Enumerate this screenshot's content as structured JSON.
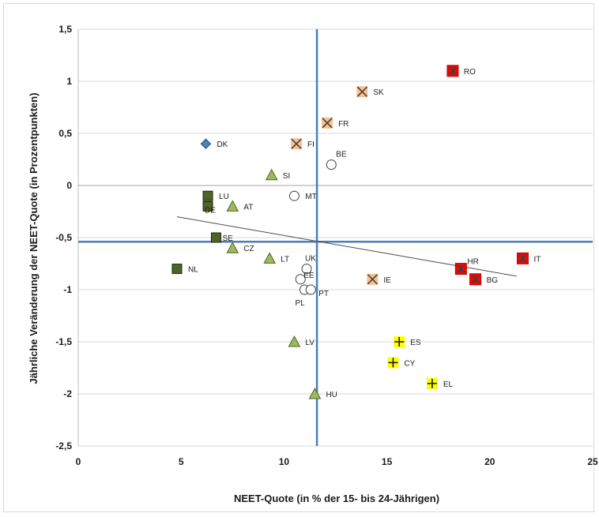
{
  "chart_data": {
    "type": "scatter",
    "title": "",
    "xlabel": "NEET-Quote (in % der 15- bis 24-Jährigen)",
    "ylabel": "Jährliche Veränderung der NEET-Quote (in Prozentpunkten)",
    "xlim": [
      0,
      25
    ],
    "ylim": [
      -2.5,
      1.5
    ],
    "xticks": [
      0,
      5,
      10,
      15,
      20,
      25
    ],
    "yticks": [
      -2.5,
      -2,
      -1.5,
      -1,
      -0.5,
      0,
      0.5,
      1,
      1.5
    ],
    "xtick_labels": [
      "0",
      "5",
      "10",
      "15",
      "20",
      "25"
    ],
    "ytick_labels": [
      "-2,5",
      "-2",
      "-1,5",
      "-1",
      "-0,5",
      "0",
      "0,5",
      "1",
      "1,5"
    ],
    "grid": "horizontal",
    "legend": "none",
    "reference_lines": {
      "x": 11.6,
      "y": -0.54,
      "color": "#4a7ebb"
    },
    "trendline": {
      "x": [
        4.8,
        21.3
      ],
      "y": [
        -0.3,
        -0.87
      ],
      "color": "#4d4d4d"
    },
    "styles": {
      "diamond_blue": {
        "marker": "diamond",
        "fill": "#4f81bd",
        "stroke": "#243f60"
      },
      "square_green": {
        "marker": "square",
        "fill": "#4f6228",
        "stroke": "#1f2a10"
      },
      "triangle_green": {
        "marker": "triangle",
        "fill": "#9bbb59",
        "stroke": "#4f6228"
      },
      "circle_white": {
        "marker": "circle",
        "fill": "#ffffff",
        "stroke": "#404040"
      },
      "x_orange": {
        "marker": "box-x",
        "fill": "#fac090",
        "stroke": "#404040"
      },
      "star_red": {
        "marker": "box-star",
        "fill": "#ff0000",
        "stroke": "#404040"
      },
      "plus_yellow": {
        "marker": "plus",
        "fill": "#ffff00",
        "stroke": "#1a1a1a"
      }
    },
    "points": [
      {
        "label": "DK",
        "x": 6.2,
        "y": 0.4,
        "style": "diamond_blue"
      },
      {
        "label": "LU",
        "x": 6.3,
        "y": -0.1,
        "style": "square_green"
      },
      {
        "label": "DE",
        "x": 6.3,
        "y": -0.2,
        "style": "square_green"
      },
      {
        "label": "SE",
        "x": 6.7,
        "y": -0.5,
        "style": "square_green"
      },
      {
        "label": "NL",
        "x": 4.8,
        "y": -0.8,
        "style": "square_green"
      },
      {
        "label": "AT",
        "x": 7.5,
        "y": -0.2,
        "style": "triangle_green"
      },
      {
        "label": "CZ",
        "x": 7.5,
        "y": -0.6,
        "style": "triangle_green"
      },
      {
        "label": "SI",
        "x": 9.4,
        "y": 0.1,
        "style": "triangle_green"
      },
      {
        "label": "LT",
        "x": 9.3,
        "y": -0.7,
        "style": "triangle_green"
      },
      {
        "label": "LV",
        "x": 10.5,
        "y": -1.5,
        "style": "triangle_green"
      },
      {
        "label": "HU",
        "x": 11.5,
        "y": -2.0,
        "style": "triangle_green"
      },
      {
        "label": "MT",
        "x": 10.5,
        "y": -0.1,
        "style": "circle_white"
      },
      {
        "label": "BE",
        "x": 12.3,
        "y": 0.2,
        "style": "circle_white"
      },
      {
        "label": "UK",
        "x": 11.1,
        "y": -0.8,
        "style": "circle_white"
      },
      {
        "label": "EE",
        "x": 10.8,
        "y": -0.9,
        "style": "circle_white"
      },
      {
        "label": "PL",
        "x": 11.0,
        "y": -1.0,
        "style": "circle_white"
      },
      {
        "label": "PT",
        "x": 11.3,
        "y": -1.0,
        "style": "circle_white"
      },
      {
        "label": "FI",
        "x": 10.6,
        "y": 0.4,
        "style": "x_orange"
      },
      {
        "label": "FR",
        "x": 12.1,
        "y": 0.6,
        "style": "x_orange"
      },
      {
        "label": "SK",
        "x": 13.8,
        "y": 0.9,
        "style": "x_orange"
      },
      {
        "label": "IE",
        "x": 14.3,
        "y": -0.9,
        "style": "x_orange"
      },
      {
        "label": "RO",
        "x": 18.2,
        "y": 1.1,
        "style": "star_red"
      },
      {
        "label": "HR",
        "x": 18.6,
        "y": -0.8,
        "style": "star_red"
      },
      {
        "label": "BG",
        "x": 19.3,
        "y": -0.9,
        "style": "star_red"
      },
      {
        "label": "IT",
        "x": 21.6,
        "y": -0.7,
        "style": "star_red"
      },
      {
        "label": "ES",
        "x": 15.6,
        "y": -1.5,
        "style": "plus_yellow"
      },
      {
        "label": "CY",
        "x": 15.3,
        "y": -1.7,
        "style": "plus_yellow"
      },
      {
        "label": "EL",
        "x": 17.2,
        "y": -1.9,
        "style": "plus_yellow"
      }
    ]
  }
}
